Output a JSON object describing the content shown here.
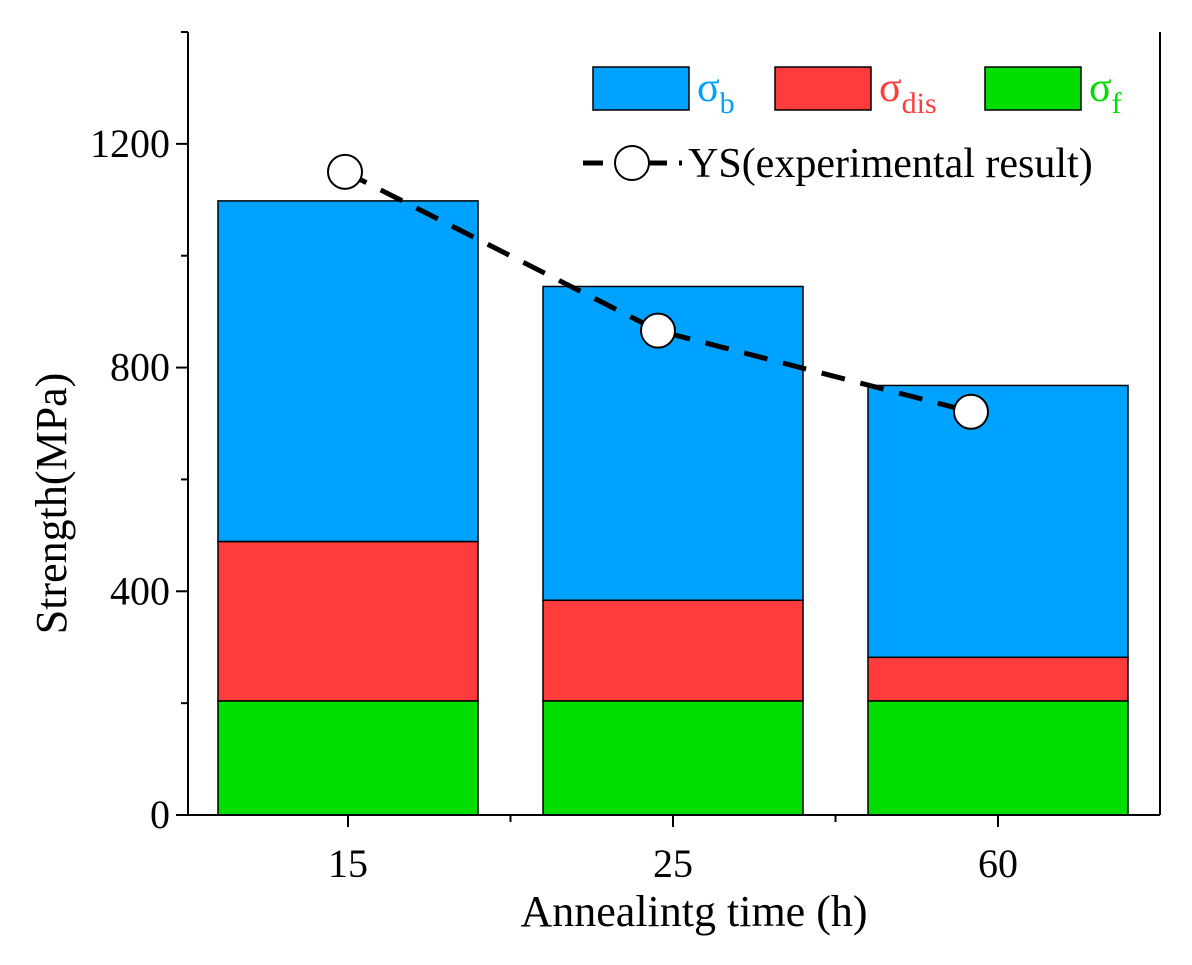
{
  "chart_data": {
    "type": "bar",
    "stacked": true,
    "title": "",
    "xlabel": "Annealintg time (h)",
    "ylabel": "Strength(MPa)",
    "categories": [
      "15",
      "25",
      "60"
    ],
    "ylim": [
      0,
      1400
    ],
    "yticks": [
      0,
      400,
      800,
      1200
    ],
    "yminor_step": 200,
    "grid": false,
    "legend_position": "top-right",
    "series": [
      {
        "name": "σ",
        "sub": "f",
        "color": "#00dd00",
        "values": [
          204,
          204,
          204
        ]
      },
      {
        "name": "σ",
        "sub": "dis",
        "color": "#ff3b3b",
        "values": [
          285,
          180,
          78
        ]
      },
      {
        "name": "σ",
        "sub": "b",
        "color": "#00a2ff",
        "values": [
          609,
          561,
          486
        ]
      }
    ],
    "line_series": {
      "name": "YS(experimental result)",
      "color": "#000000",
      "values": [
        1150,
        866,
        721
      ]
    }
  }
}
